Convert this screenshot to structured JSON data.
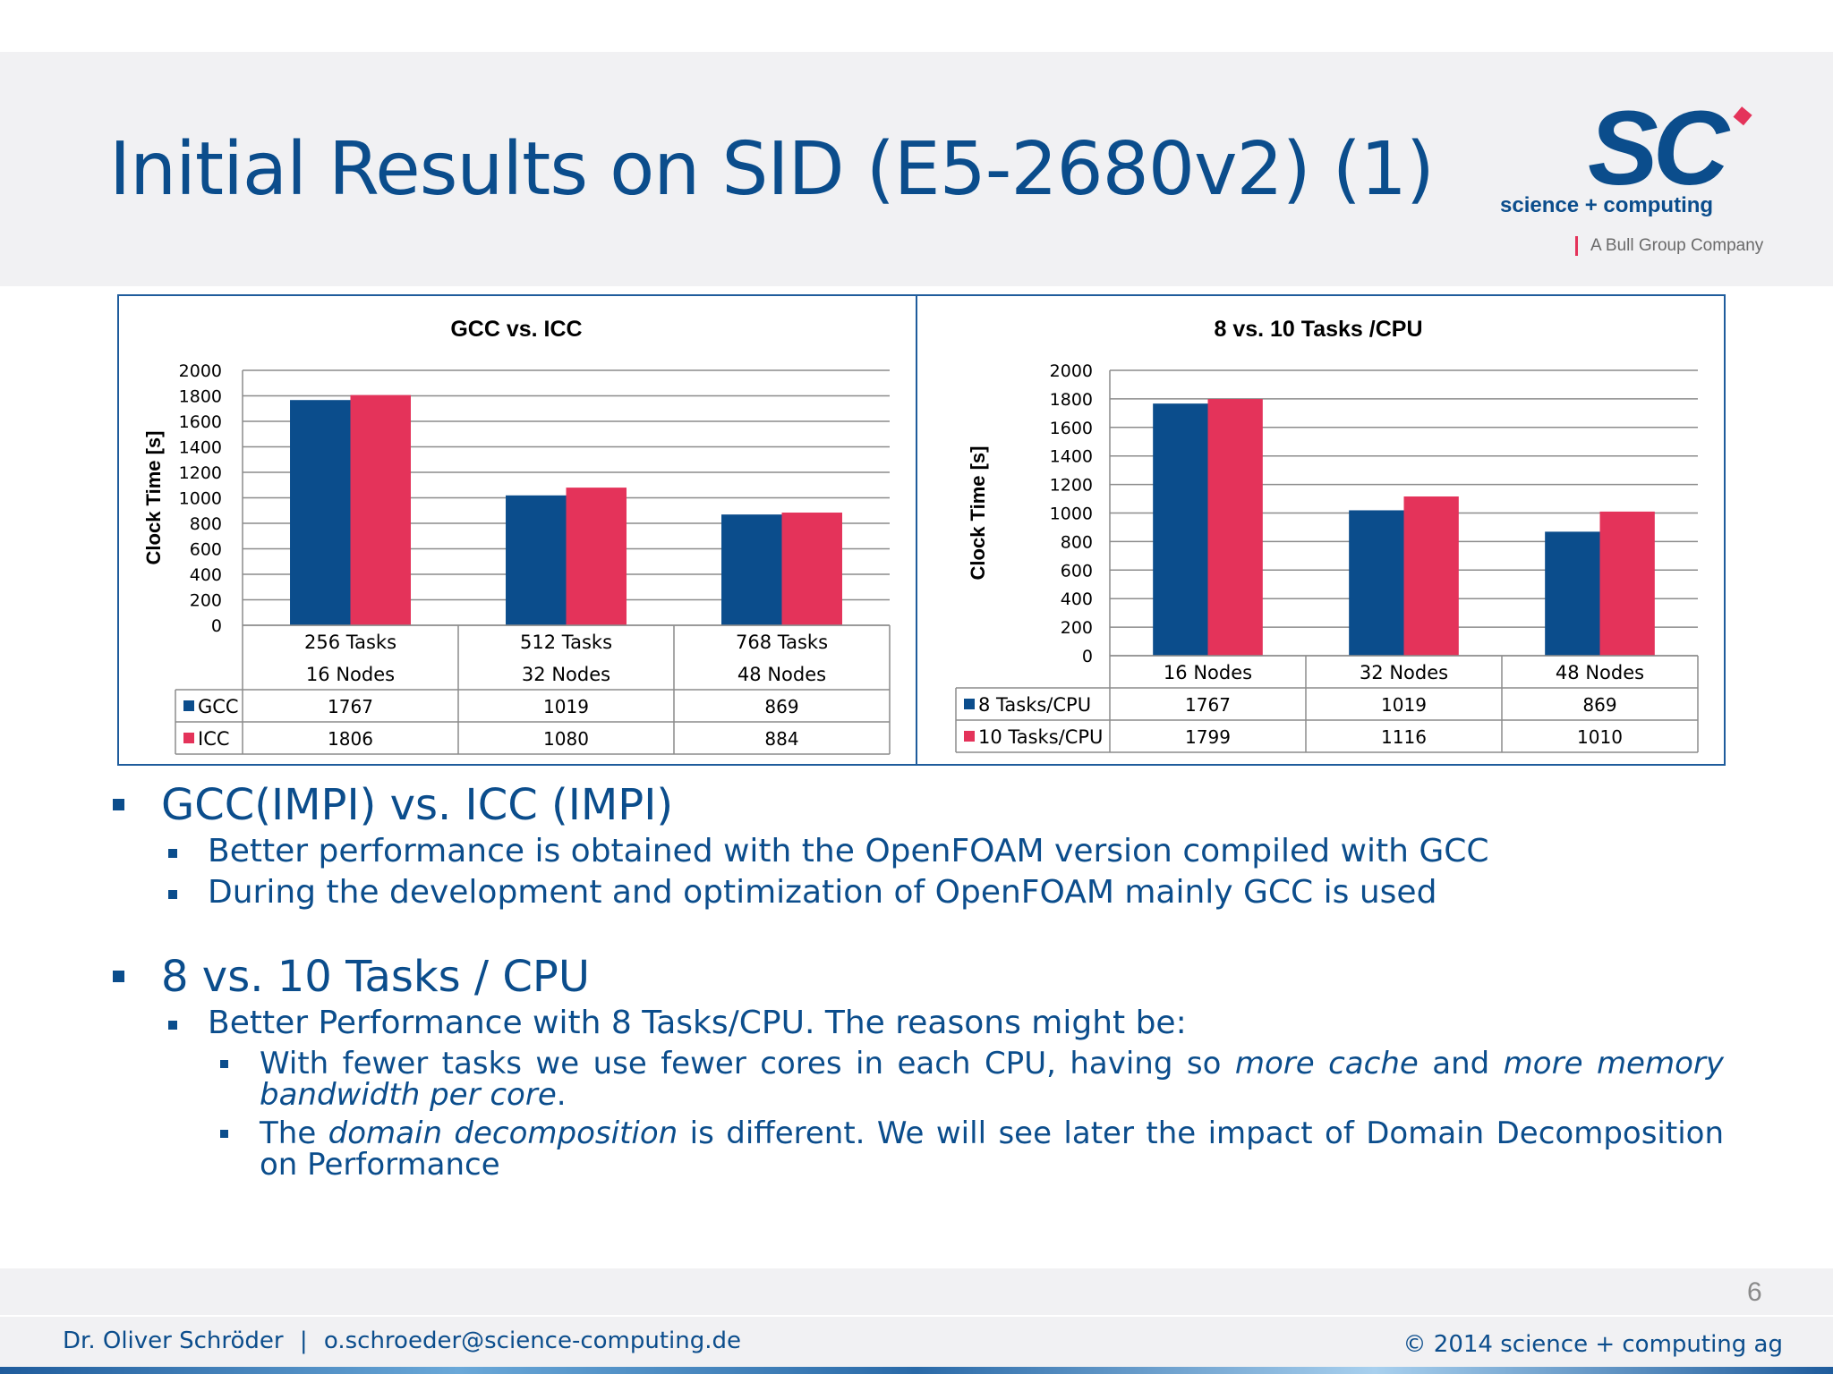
{
  "slide": {
    "title": "Initial Results on SID (E5-2680v2) (1)",
    "page_number": "6"
  },
  "logo": {
    "mark": "SC",
    "tagline": "science + computing",
    "group": "A Bull Group Company",
    "colors": {
      "blue": "#0b4d8c",
      "red": "#e4335a"
    }
  },
  "chart_data": [
    {
      "type": "bar",
      "title": "GCC vs. ICC",
      "ylabel": "Clock Time [s]",
      "xlabel": "",
      "ylim": [
        0,
        2000
      ],
      "yticks": [
        0,
        200,
        400,
        600,
        800,
        1000,
        1200,
        1400,
        1600,
        1800,
        2000
      ],
      "categories": [
        "256 Tasks 16 Nodes",
        "512 Tasks 32 Nodes",
        "768 Tasks 48 Nodes"
      ],
      "category_lines": [
        [
          "256 Tasks",
          "16 Nodes"
        ],
        [
          "512 Tasks",
          "32 Nodes"
        ],
        [
          "768 Tasks",
          "48 Nodes"
        ]
      ],
      "series": [
        {
          "name": "GCC",
          "values": [
            1767,
            1019,
            869
          ],
          "color": "#0b4d8c"
        },
        {
          "name": "ICC",
          "values": [
            1806,
            1080,
            884
          ],
          "color": "#e4335a"
        }
      ],
      "grid": true,
      "legend": "data-table"
    },
    {
      "type": "bar",
      "title": "8 vs. 10 Tasks /CPU",
      "ylabel": "Clock Time [s]",
      "xlabel": "",
      "ylim": [
        0,
        2000
      ],
      "yticks": [
        0,
        200,
        400,
        600,
        800,
        1000,
        1200,
        1400,
        1600,
        1800,
        2000
      ],
      "categories": [
        "16 Nodes",
        "32 Nodes",
        "48 Nodes"
      ],
      "category_lines": [
        [
          "16 Nodes"
        ],
        [
          "32 Nodes"
        ],
        [
          "48 Nodes"
        ]
      ],
      "series": [
        {
          "name": "8 Tasks/CPU",
          "values": [
            1767,
            1019,
            869
          ],
          "color": "#0b4d8c"
        },
        {
          "name": "10 Tasks/CPU",
          "values": [
            1799,
            1116,
            1010
          ],
          "color": "#e4335a"
        }
      ],
      "grid": true,
      "legend": "data-table"
    }
  ],
  "bullets": {
    "gcc_heading": "GCC(IMPI) vs. ICC (IMPI)",
    "gcc_sub1": "Better performance is obtained with the OpenFOAM version compiled with GCC",
    "gcc_sub2": "During the development and optimization of OpenFOAM mainly GCC is used",
    "tasks_heading": "8 vs. 10 Tasks / CPU",
    "tasks_sub1": "Better Performance with 8 Tasks/CPU. The reasons might be:",
    "reason1_a": "With fewer tasks we use fewer cores in each CPU, having so ",
    "reason1_b": "more cache",
    "reason1_c": " and ",
    "reason1_d": "more memory bandwidth per core",
    "reason1_e": ".",
    "reason2_a": "The ",
    "reason2_b": "domain decomposition",
    "reason2_c": " is different. We will see later the impact of Domain Decomposition on Performance"
  },
  "footer": {
    "author": "Dr. Oliver Schröder",
    "separator": "|",
    "email": "o.schroeder@science-computing.de",
    "copyright": "© 2014 science +  computing ag"
  }
}
